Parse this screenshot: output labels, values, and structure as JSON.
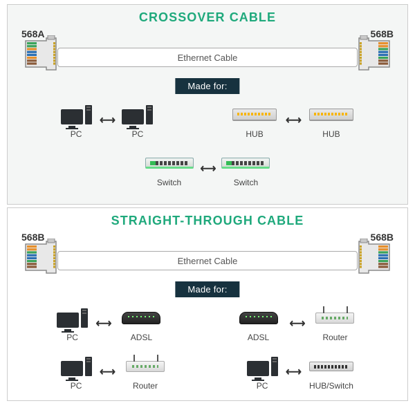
{
  "colors": {
    "title_crossover": "#1fa97c",
    "title_straight": "#1fa97c",
    "panel_top_bg": "#f4f6f5",
    "panel_bot_bg": "#ffffff",
    "made_for_bg": "#17323f",
    "cable_border": "#aaaaaa",
    "text_muted": "#555555"
  },
  "crossover": {
    "title": "CROSSOVER CABLE",
    "left_standard": "568A",
    "right_standard": "568B",
    "cable_label": "Ethernet Cable",
    "made_for_label": "Made for:",
    "rj45_left_wires": [
      "#3aa35a",
      "#3aa35a",
      "#e68f2c",
      "#2b6fb3",
      "#2b6fb3",
      "#e68f2c",
      "#8a5b3a",
      "#8a5b3a"
    ],
    "rj45_right_wires": [
      "#e68f2c",
      "#e68f2c",
      "#3aa35a",
      "#2b6fb3",
      "#2b6fb3",
      "#3aa35a",
      "#8a5b3a",
      "#8a5b3a"
    ],
    "pairs_row1": [
      {
        "a": {
          "type": "pc",
          "label": "PC"
        },
        "b": {
          "type": "pc",
          "label": "PC"
        }
      },
      {
        "a": {
          "type": "hub",
          "label": "HUB"
        },
        "b": {
          "type": "hub",
          "label": "HUB"
        }
      }
    ],
    "pairs_row2": [
      {
        "a": {
          "type": "switch",
          "label": "Switch"
        },
        "b": {
          "type": "switch",
          "label": "Switch"
        }
      }
    ]
  },
  "straight": {
    "title": "STRAIGHT-THROUGH CABLE",
    "left_standard": "568B",
    "right_standard": "568B",
    "cable_label": "Ethernet Cable",
    "made_for_label": "Made for:",
    "rj45_left_wires": [
      "#e68f2c",
      "#e68f2c",
      "#3aa35a",
      "#2b6fb3",
      "#2b6fb3",
      "#3aa35a",
      "#8a5b3a",
      "#8a5b3a"
    ],
    "rj45_right_wires": [
      "#e68f2c",
      "#e68f2c",
      "#3aa35a",
      "#2b6fb3",
      "#2b6fb3",
      "#3aa35a",
      "#8a5b3a",
      "#8a5b3a"
    ],
    "pairs_row1": [
      {
        "a": {
          "type": "pc",
          "label": "PC"
        },
        "b": {
          "type": "adsl",
          "label": "ADSL"
        }
      },
      {
        "a": {
          "type": "adsl",
          "label": "ADSL"
        },
        "b": {
          "type": "router",
          "label": "Router"
        }
      }
    ],
    "pairs_row2": [
      {
        "a": {
          "type": "pc",
          "label": "PC"
        },
        "b": {
          "type": "router",
          "label": "Router"
        }
      },
      {
        "a": {
          "type": "pc",
          "label": "PC"
        },
        "b": {
          "type": "hubsw",
          "label": "HUB/Switch"
        }
      }
    ]
  },
  "arrow_glyph": "⟷"
}
